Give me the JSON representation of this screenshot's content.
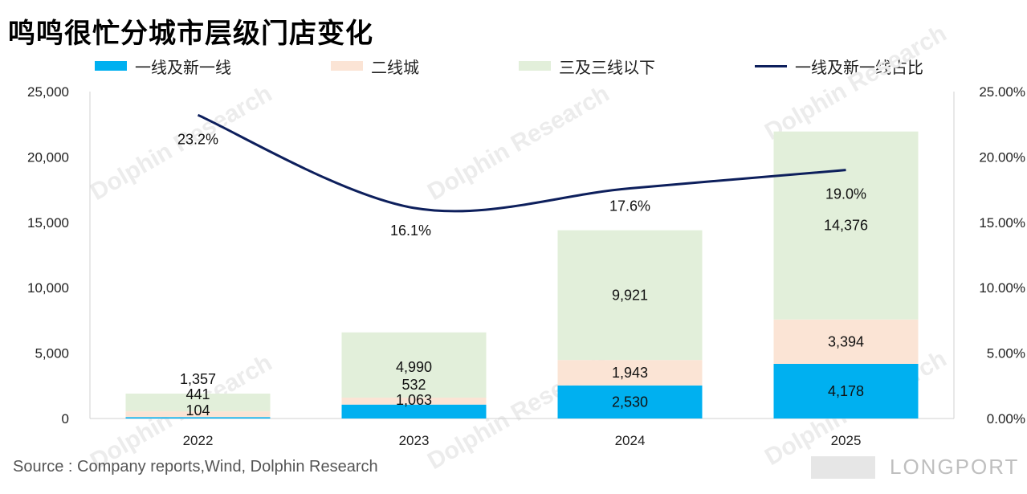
{
  "title": "鸣鸣很忙分城市层级门店变化",
  "source": "Source : Company reports,Wind, Dolphin Research",
  "watermark": {
    "text": "Dolphin Research",
    "brand": "LONGPORT"
  },
  "chart_data": {
    "type": "bar",
    "stacked": true,
    "categories": [
      "2022",
      "2023",
      "2024",
      "2025"
    ],
    "series": [
      {
        "name": "一线及新一线",
        "color": "#00b0f0",
        "values": [
          104,
          1063,
          2530,
          4178
        ],
        "labels": [
          "104",
          "1,063",
          "2,530",
          "4,178"
        ]
      },
      {
        "name": "二线城",
        "color": "#fbe4d5",
        "values": [
          441,
          532,
          1943,
          3394
        ],
        "labels": [
          "441",
          "532",
          "1,943",
          "3,394"
        ]
      },
      {
        "name": "三及三线以下",
        "color": "#e2efda",
        "values": [
          1357,
          4990,
          9921,
          14376
        ],
        "labels": [
          "1,357",
          "4,990",
          "9,921",
          "14,376"
        ]
      }
    ],
    "line_series": {
      "name": "一线及新一线占比",
      "color": "#0d1f5c",
      "axis": "right",
      "values": [
        23.2,
        16.1,
        17.6,
        19.0
      ],
      "labels": [
        "23.2%",
        "16.1%",
        "17.6%",
        "19.0%"
      ]
    },
    "ylim": [
      0,
      25000
    ],
    "y_ticks": [
      "0",
      "5,000",
      "10,000",
      "15,000",
      "20,000",
      "25,000"
    ],
    "y2lim": [
      0,
      25
    ],
    "y2_ticks": [
      "0.00%",
      "5.00%",
      "10.00%",
      "15.00%",
      "20.00%",
      "25.00%"
    ],
    "legend_position": "top"
  }
}
